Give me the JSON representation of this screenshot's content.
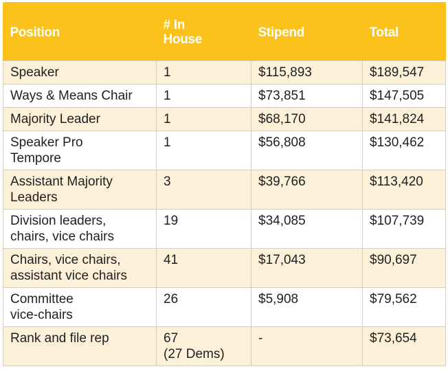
{
  "table": {
    "headers": {
      "position": "Position",
      "in_house_line1": "# In",
      "in_house_line2": "House",
      "stipend": "Stipend",
      "total": "Total"
    },
    "rows": [
      {
        "position_l1": "Speaker",
        "position_l2": "",
        "in_house": "1",
        "in_house_note": "",
        "stipend": "$115,893",
        "total": "$189,547"
      },
      {
        "position_l1": "Ways & Means Chair",
        "position_l2": "",
        "in_house": "1",
        "in_house_note": "",
        "stipend": "$73,851",
        "total": "$147,505"
      },
      {
        "position_l1": "Majority Leader",
        "position_l2": "",
        "in_house": "1",
        "in_house_note": "",
        "stipend": "$68,170",
        "total": "$141,824"
      },
      {
        "position_l1": "Speaker Pro",
        "position_l2": "Tempore",
        "in_house": "1",
        "in_house_note": "",
        "stipend": "$56,808",
        "total": "$130,462"
      },
      {
        "position_l1": "Assistant Majority",
        "position_l2": "Leaders",
        "in_house": "3",
        "in_house_note": "",
        "stipend": "$39,766",
        "total": "$113,420"
      },
      {
        "position_l1": "Division leaders,",
        "position_l2": "chairs, vice chairs",
        "in_house": "19",
        "in_house_note": "",
        "stipend": "$34,085",
        "total": "$107,739"
      },
      {
        "position_l1": "Chairs, vice chairs,",
        "position_l2": "assistant vice chairs",
        "in_house": "41",
        "in_house_note": "",
        "stipend": "$17,043",
        "total": "$90,697"
      },
      {
        "position_l1": "Committee",
        "position_l2": "vice-chairs",
        "in_house": "26",
        "in_house_note": "",
        "stipend": "$5,908",
        "total": "$79,562"
      },
      {
        "position_l1": "Rank and file rep",
        "position_l2": "",
        "in_house": "67",
        "in_house_note": "(27 Dems)",
        "stipend": "-",
        "total": "$73,654"
      }
    ]
  }
}
